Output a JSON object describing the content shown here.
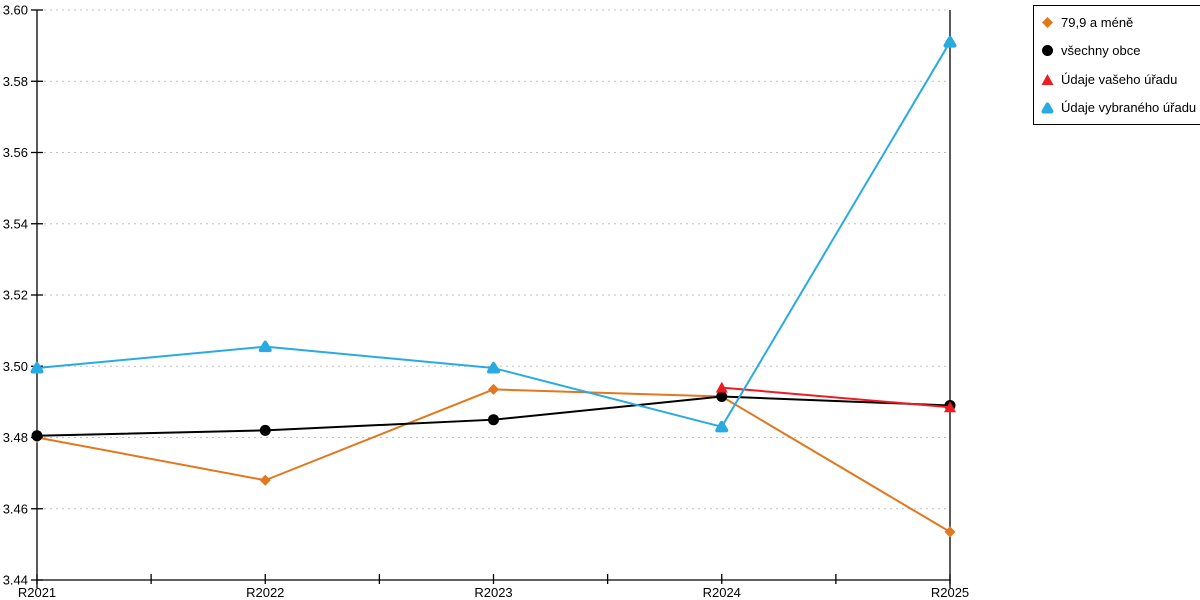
{
  "chart_data": {
    "type": "line",
    "title": "",
    "categories": [
      "R2021",
      "R2022",
      "R2023",
      "R2024",
      "R2025"
    ],
    "series": [
      {
        "name": "79,9 a méně",
        "color": "#E2771D",
        "marker": "diamond",
        "values": [
          3.48,
          3.468,
          3.4935,
          3.4915,
          3.4535
        ]
      },
      {
        "name": "všechny obce",
        "color": "#000000",
        "marker": "circle",
        "values": [
          3.4805,
          3.482,
          3.485,
          3.4915,
          3.489
        ]
      },
      {
        "name": "Údaje vašeho úřadu",
        "color": "#ED1C24",
        "marker": "triangle",
        "values": [
          null,
          null,
          null,
          3.494,
          3.4885
        ]
      },
      {
        "name": "Údaje vybraného úřadu",
        "color": "#29ABE2",
        "marker": "triangle-rounded",
        "values": [
          3.4995,
          3.5055,
          3.4995,
          3.483,
          3.591
        ]
      }
    ],
    "ylim": [
      3.44,
      3.6
    ],
    "ytick_step": 0.02,
    "ytick_labels": [
      "3.44",
      "3.46",
      "3.48",
      "3.50",
      "3.52",
      "3.54",
      "3.56",
      "3.58",
      "3.60"
    ],
    "grid": {
      "horizontal": "dashed",
      "color": "#C0C0C0"
    },
    "axis_color": "#000000",
    "legend_position": "top-right"
  }
}
